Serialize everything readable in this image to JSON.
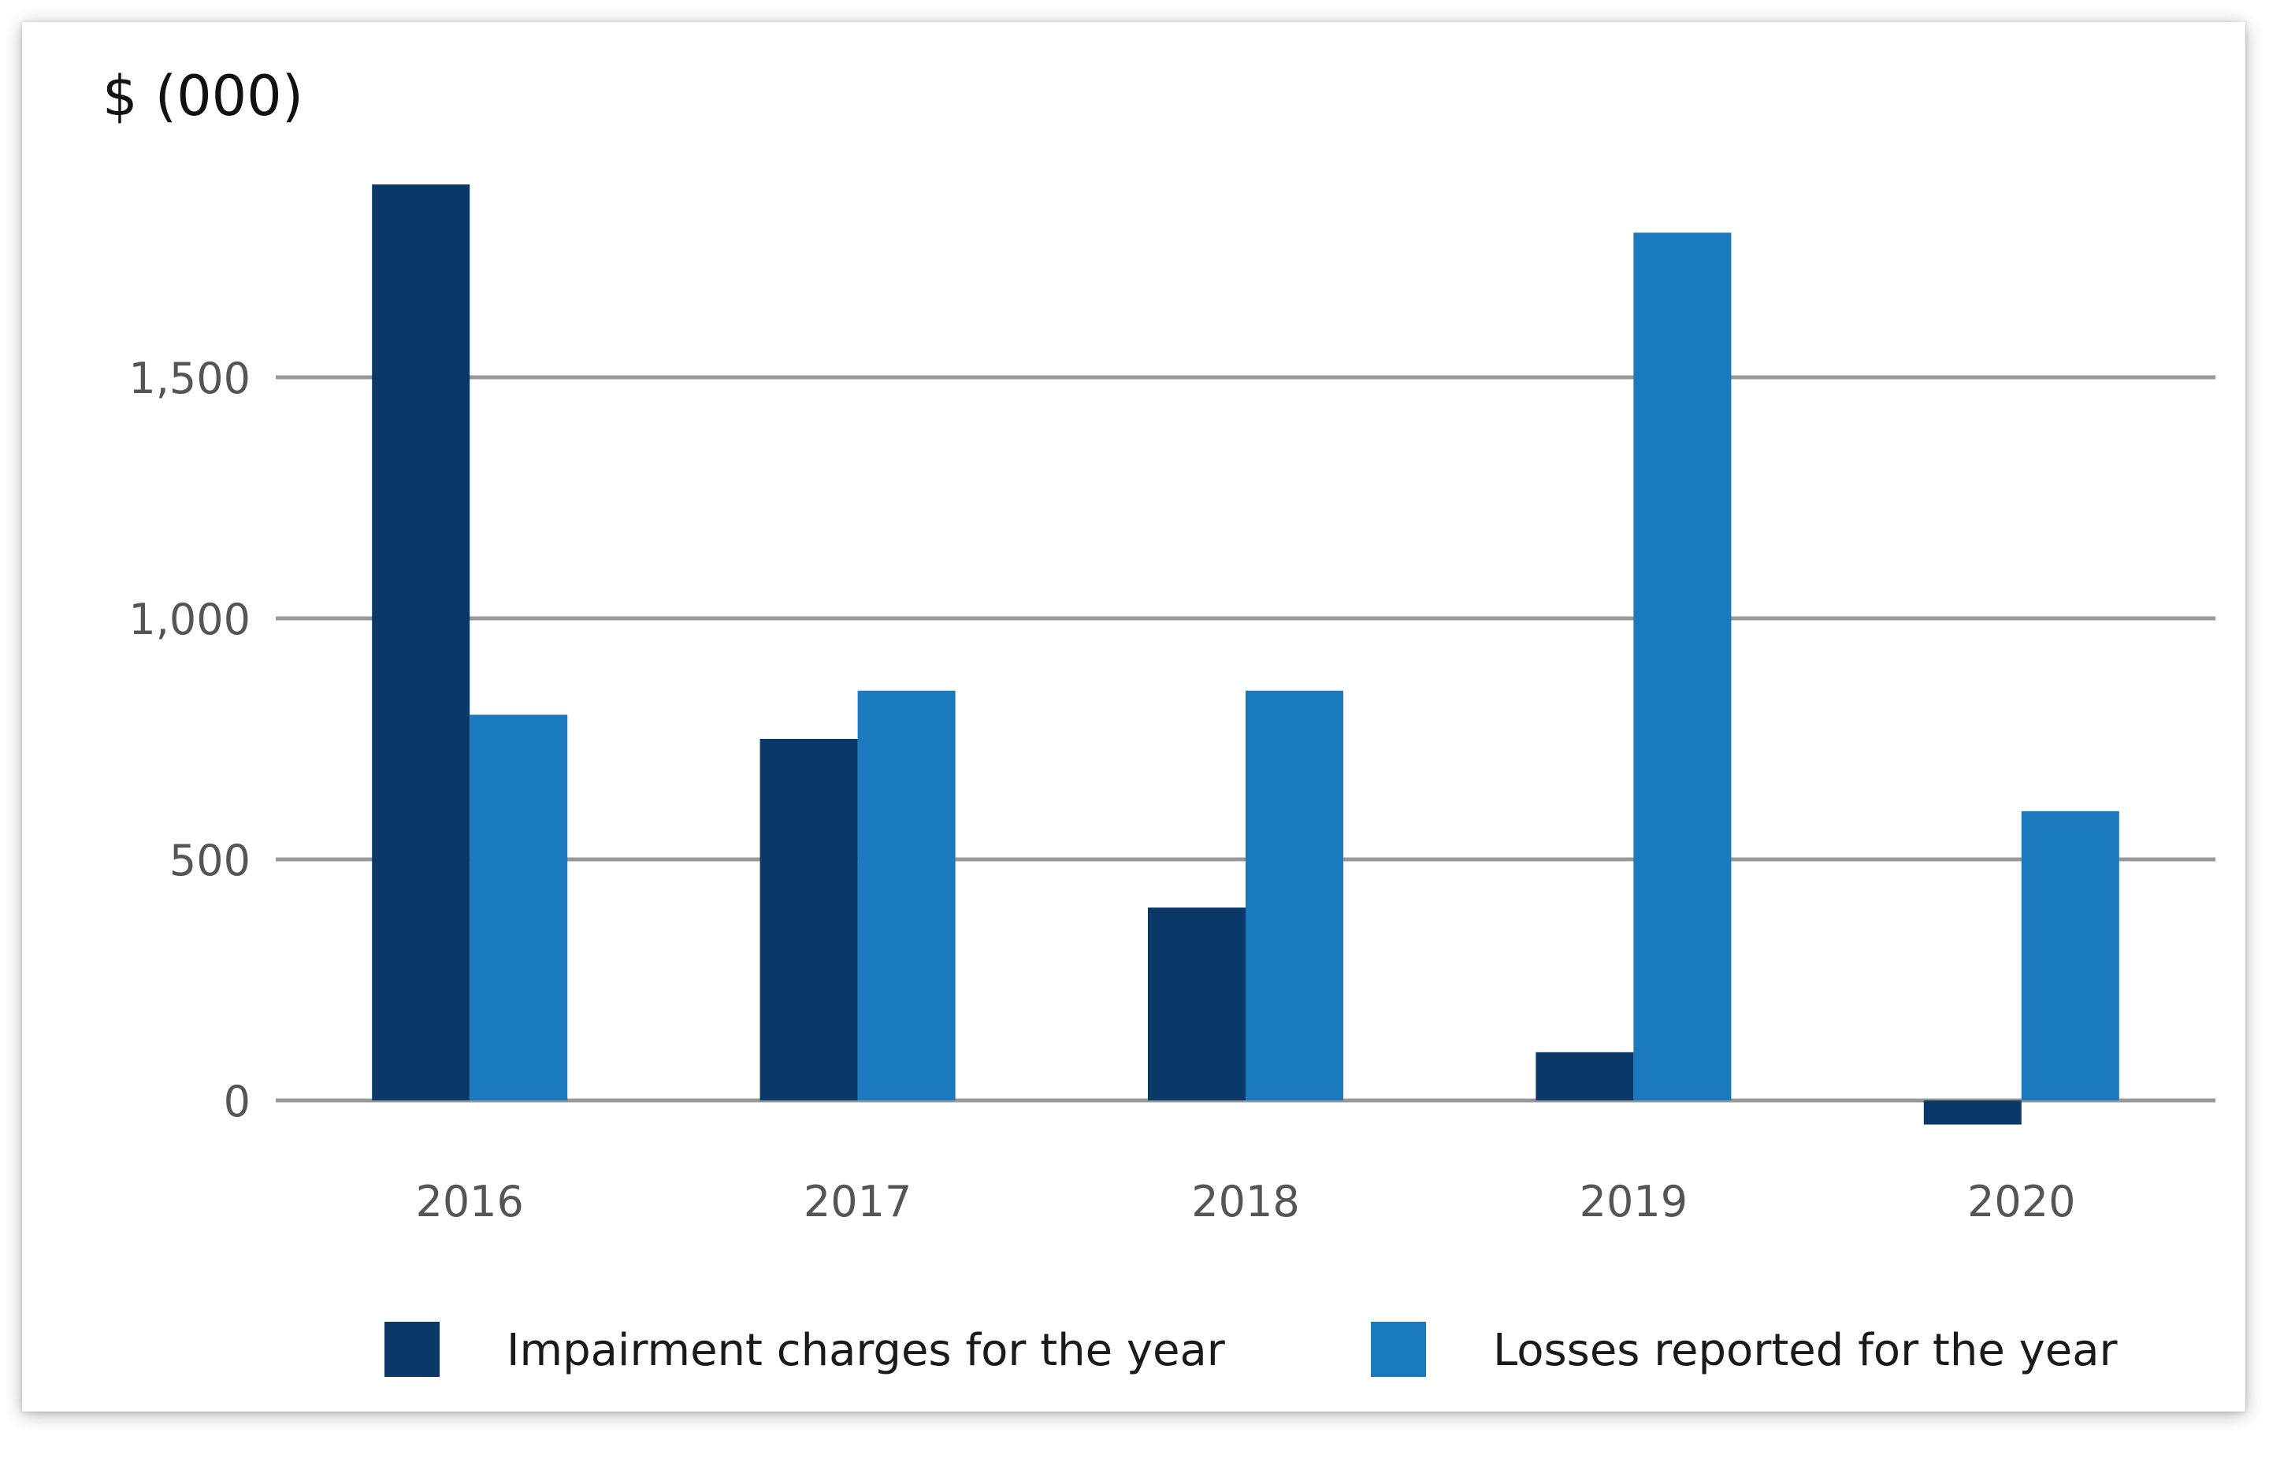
{
  "chart_data": {
    "type": "bar",
    "title": "",
    "y_unit_label": "$ (000)",
    "xlabel": "",
    "ylabel": "$ (000)",
    "categories": [
      "2016",
      "2017",
      "2018",
      "2019",
      "2020"
    ],
    "series": [
      {
        "name": "Impairment charges for the year",
        "color": "#0a3868",
        "values": [
          1900,
          750,
          400,
          100,
          -50
        ]
      },
      {
        "name": "Losses reported for the year",
        "color": "#1b79be",
        "values": [
          800,
          850,
          850,
          1800,
          600
        ]
      }
    ],
    "ylim": [
      -50,
      1900
    ],
    "y_ticks": [
      0,
      500,
      1000,
      1500
    ],
    "y_tick_labels": [
      "0",
      "500",
      "1,000",
      "1,500"
    ],
    "grid": true,
    "grid_color": "#999999",
    "legend_position": "bottom"
  }
}
